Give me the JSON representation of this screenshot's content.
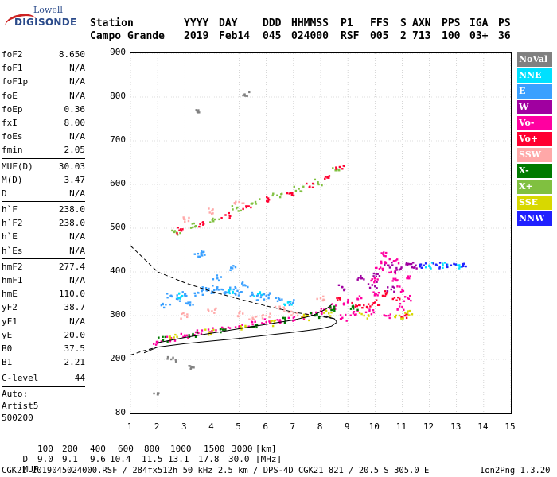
{
  "logo": {
    "line1": "Lowell",
    "line2": "DIGISONDE"
  },
  "header": {
    "row1": [
      "Station",
      "YYYY",
      "DAY",
      "DDD",
      "HHMMSS",
      "P1",
      "FFS",
      "S",
      "AXN",
      "PPS",
      "IGA",
      "PS"
    ],
    "row2": [
      "Campo Grande",
      "2019",
      "Feb14",
      "045",
      "024000",
      "RSF",
      "005",
      "2",
      "713",
      "100",
      "03+",
      "36"
    ]
  },
  "params": {
    "group1": [
      {
        "label": "foF2",
        "value": "8.650"
      },
      {
        "label": "foF1",
        "value": "N/A"
      },
      {
        "label": "foF1p",
        "value": "N/A"
      },
      {
        "label": "foE",
        "value": "N/A"
      },
      {
        "label": "foEp",
        "value": "0.36"
      },
      {
        "label": "fxI",
        "value": "8.00"
      },
      {
        "label": "foEs",
        "value": "N/A"
      },
      {
        "label": "fmin",
        "value": "2.05"
      }
    ],
    "group2": [
      {
        "label": "MUF(D)",
        "value": "30.03"
      },
      {
        "label": "M(D)",
        "value": "3.47"
      },
      {
        "label": "D",
        "value": "N/A"
      }
    ],
    "group3": [
      {
        "label": "h`F",
        "value": "238.0"
      },
      {
        "label": "h`F2",
        "value": "238.0"
      },
      {
        "label": "h`E",
        "value": "N/A"
      },
      {
        "label": "h`Es",
        "value": "N/A"
      }
    ],
    "group4": [
      {
        "label": "hmF2",
        "value": "277.4"
      },
      {
        "label": "hmF1",
        "value": "N/A"
      },
      {
        "label": "hmE",
        "value": "110.0"
      },
      {
        "label": "yF2",
        "value": "38.7"
      },
      {
        "label": "yF1",
        "value": "N/A"
      },
      {
        "label": "yE",
        "value": "20.0"
      },
      {
        "label": "B0",
        "value": "37.5"
      },
      {
        "label": "B1",
        "value": "2.21"
      }
    ],
    "group5": [
      {
        "label": "C-level",
        "value": "44"
      }
    ],
    "auto_lines": [
      "Auto:",
      "Artist5",
      "500200"
    ]
  },
  "legend": [
    {
      "label": "NoVal",
      "color": "#808080"
    },
    {
      "label": "NNE",
      "color": "#00e0ff"
    },
    {
      "label": "E",
      "color": "#3aa0ff"
    },
    {
      "label": "W",
      "color": "#a000a0"
    },
    {
      "label": "Vo-",
      "color": "#ff00a0"
    },
    {
      "label": "Vo+",
      "color": "#ff0030"
    },
    {
      "label": "SSW",
      "color": "#ffa8a8"
    },
    {
      "label": "X-",
      "color": "#007a00"
    },
    {
      "label": "X+",
      "color": "#80c040"
    },
    {
      "label": "SSE",
      "color": "#d8d800"
    },
    {
      "label": "NNW",
      "color": "#2020ff"
    }
  ],
  "chart_data": {
    "type": "scatter",
    "title": "",
    "xlabel": "",
    "ylabel": "",
    "xlim": [
      1,
      15
    ],
    "ylim": [
      80,
      900
    ],
    "x_ticks": [
      "1",
      "2",
      "3",
      "4",
      "5",
      "6",
      "7",
      "8",
      "9",
      "10",
      "11",
      "12",
      "13",
      "14",
      "15"
    ],
    "y_ticks": [
      "900",
      "800",
      "700",
      "600",
      "500",
      "400",
      "300",
      "200",
      "80"
    ],
    "grid": true,
    "series": [
      {
        "color": "#3aa0ff",
        "points": [
          [
            2.5,
            345
          ],
          [
            3,
            350
          ],
          [
            3.5,
            352
          ],
          [
            4,
            355
          ],
          [
            4.5,
            354
          ],
          [
            5,
            352
          ],
          [
            5.5,
            348
          ],
          [
            6,
            345
          ],
          [
            2.8,
            340
          ],
          [
            3.8,
            358
          ],
          [
            4.8,
            360
          ],
          [
            5.8,
            342
          ],
          [
            3.2,
            330
          ],
          [
            4.2,
            365
          ],
          [
            6.5,
            335
          ],
          [
            7,
            330
          ],
          [
            3.5,
            435
          ],
          [
            3.6,
            440
          ],
          [
            4.7,
            410
          ],
          [
            4.2,
            385
          ],
          [
            2.3,
            325
          ],
          [
            5.2,
            370
          ]
        ]
      },
      {
        "color": "#ff00a0",
        "points": [
          [
            2,
            240
          ],
          [
            2.5,
            248
          ],
          [
            3,
            255
          ],
          [
            3.5,
            260
          ],
          [
            4,
            265
          ],
          [
            4.5,
            270
          ],
          [
            5,
            275
          ],
          [
            5.5,
            280
          ],
          [
            6,
            285
          ],
          [
            6.5,
            290
          ],
          [
            7,
            295
          ],
          [
            7.5,
            300
          ],
          [
            8,
            310
          ],
          [
            8.5,
            320
          ],
          [
            9,
            330
          ],
          [
            9.5,
            340
          ],
          [
            10,
            350
          ],
          [
            10,
            380
          ],
          [
            10.2,
            410
          ],
          [
            10.4,
            420
          ],
          [
            10.6,
            400
          ],
          [
            10.8,
            380
          ],
          [
            11,
            360
          ],
          [
            11.2,
            340
          ],
          [
            11,
            320
          ],
          [
            10.5,
            300
          ],
          [
            9.8,
            310
          ],
          [
            9.2,
            305
          ],
          [
            8.8,
            295
          ],
          [
            10.3,
            440
          ],
          [
            10.7,
            425
          ],
          [
            11.3,
            390
          ]
        ]
      },
      {
        "color": "#a000a0",
        "points": [
          [
            10.1,
            395
          ],
          [
            10.5,
            415
          ],
          [
            10.9,
            405
          ],
          [
            11.2,
            415
          ],
          [
            9.9,
            370
          ],
          [
            10.6,
            360
          ],
          [
            8.8,
            365
          ],
          [
            9.5,
            385
          ],
          [
            11.5,
            415
          ]
        ]
      },
      {
        "color": "#ff0030",
        "points": [
          [
            10,
            330
          ],
          [
            10.4,
            350
          ],
          [
            10.8,
            335
          ],
          [
            9.7,
            320
          ],
          [
            11.1,
            300
          ],
          [
            8.6,
            340
          ],
          [
            9.3,
            325
          ]
        ]
      },
      {
        "color": "#007a00",
        "points": [
          [
            2.2,
            245
          ],
          [
            3.3,
            258
          ],
          [
            4.4,
            268
          ],
          [
            5.6,
            278
          ],
          [
            6.7,
            288
          ],
          [
            7.8,
            300
          ],
          [
            8.5,
            315
          ],
          [
            9.2,
            320
          ]
        ]
      },
      {
        "color": "#d8d800",
        "points": [
          [
            2.6,
            250
          ],
          [
            3.9,
            262
          ],
          [
            5.1,
            272
          ],
          [
            6.3,
            283
          ],
          [
            7.4,
            296
          ],
          [
            8.3,
            305
          ],
          [
            10.9,
            300
          ],
          [
            11.2,
            305
          ],
          [
            9.6,
            300
          ]
        ]
      },
      {
        "color": "#ffa8a8",
        "points": [
          [
            3,
            300
          ],
          [
            4,
            310
          ],
          [
            5,
            305
          ],
          [
            6,
            300
          ],
          [
            7,
            305
          ],
          [
            6.5,
            315
          ],
          [
            5.5,
            295
          ],
          [
            8,
            340
          ],
          [
            3,
            520
          ],
          [
            4,
            540
          ],
          [
            5,
            560
          ]
        ]
      },
      {
        "color": "#00e0ff",
        "points": [
          [
            2.9,
            345
          ],
          [
            4.6,
            355
          ],
          [
            5.7,
            350
          ],
          [
            6.8,
            330
          ],
          [
            12,
            415
          ],
          [
            12.5,
            415
          ],
          [
            13,
            415
          ]
        ]
      },
      {
        "color": "#2020ff",
        "points": [
          [
            12.3,
            415
          ],
          [
            12.8,
            415
          ],
          [
            13.2,
            412
          ],
          [
            11.8,
            415
          ]
        ]
      },
      {
        "color": "#80c040",
        "points": [
          [
            2.7,
            490
          ],
          [
            3.4,
            505
          ],
          [
            4.1,
            520
          ],
          [
            4.9,
            545
          ],
          [
            5.6,
            560
          ],
          [
            6.4,
            575
          ],
          [
            7.2,
            590
          ],
          [
            7.9,
            605
          ],
          [
            8.6,
            635
          ]
        ]
      },
      {
        "color": "#ff0030",
        "points": [
          [
            2.8,
            495
          ],
          [
            3.7,
            510
          ],
          [
            4.5,
            530
          ],
          [
            5.3,
            550
          ],
          [
            6.1,
            565
          ],
          [
            6.9,
            580
          ],
          [
            7.6,
            595
          ],
          [
            8.3,
            615
          ],
          [
            8.7,
            640
          ]
        ]
      },
      {
        "color": "#808080",
        "points": [
          [
            3.5,
            770
          ],
          [
            5.2,
            805
          ],
          [
            2,
            125
          ],
          [
            2.5,
            200
          ],
          [
            3.2,
            185
          ]
        ]
      }
    ],
    "lines": [
      {
        "style": "solid",
        "points": [
          [
            1.5,
            215
          ],
          [
            2,
            228
          ],
          [
            3,
            236
          ],
          [
            4,
            242
          ],
          [
            5,
            248
          ],
          [
            6,
            255
          ],
          [
            7,
            262
          ],
          [
            8,
            270
          ],
          [
            8.4,
            276
          ],
          [
            8.6,
            285
          ],
          [
            8.5,
            293
          ],
          [
            8.2,
            298
          ],
          [
            8,
            299
          ]
        ]
      },
      {
        "style": "solid",
        "points": [
          [
            2,
            238
          ],
          [
            3,
            250
          ],
          [
            4,
            260
          ],
          [
            5,
            270
          ],
          [
            6,
            280
          ],
          [
            7,
            290
          ],
          [
            7.7,
            300
          ],
          [
            8.2,
            315
          ],
          [
            8.4,
            325
          ]
        ]
      },
      {
        "style": "dashed",
        "points": [
          [
            1,
            460
          ],
          [
            1.5,
            430
          ],
          [
            2,
            400
          ],
          [
            3,
            375
          ],
          [
            4,
            355
          ],
          [
            5,
            338
          ],
          [
            6,
            322
          ],
          [
            7,
            308
          ],
          [
            8,
            298
          ],
          [
            8.5,
            293
          ]
        ]
      },
      {
        "style": "dashed",
        "points": [
          [
            1,
            210
          ],
          [
            1.5,
            220
          ],
          [
            2,
            228
          ]
        ]
      }
    ]
  },
  "footer": {
    "d_label": "D",
    "d_values": [
      "100",
      "200",
      "400",
      "600",
      "800",
      "1000",
      "1500",
      "3000"
    ],
    "d_unit": "[km]",
    "muf_label": "MUF",
    "muf_values": [
      "9.0",
      "9.1",
      "9.6",
      "10.4",
      "11.5",
      "13.1",
      "17.8",
      "30.0"
    ],
    "muf_unit": "[MHz]",
    "file_line": "CGK21_2019045024000.RSF / 284fx512h 50 kHz 2.5 km / DPS-4D CGK21 821 / 20.5 S 305.0 E",
    "version": "Ion2Png 1.3.20"
  }
}
